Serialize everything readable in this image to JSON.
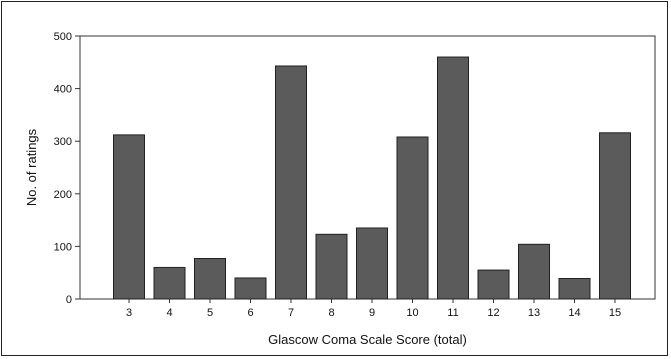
{
  "chart_data": {
    "type": "bar",
    "title": "",
    "xlabel": "Glascow Coma Scale Score (total)",
    "ylabel": "No. of ratings",
    "categories": [
      "3",
      "4",
      "5",
      "6",
      "7",
      "8",
      "9",
      "10",
      "11",
      "12",
      "13",
      "14",
      "15"
    ],
    "values": [
      312,
      60,
      77,
      40,
      443,
      123,
      135,
      308,
      460,
      55,
      104,
      39,
      316
    ],
    "ylim": [
      0,
      500
    ],
    "yticks": [
      "0",
      "100",
      "200",
      "300",
      "400",
      "500"
    ],
    "grid": false,
    "legend": "none",
    "bar_color": "#5b5b5b",
    "bar_stroke": "#222222"
  }
}
